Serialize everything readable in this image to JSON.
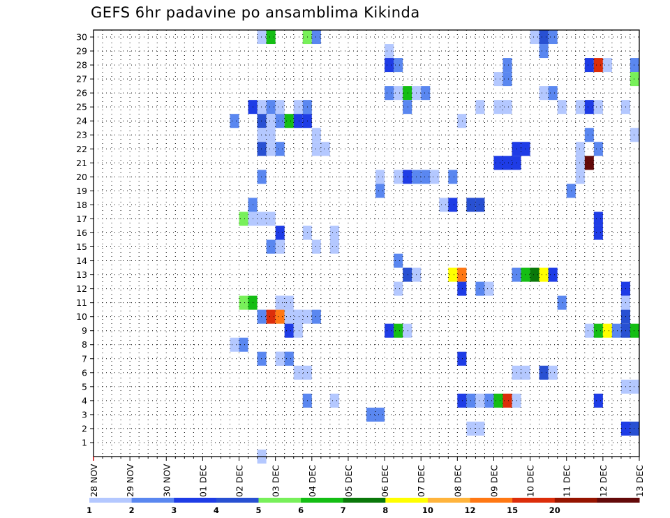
{
  "chart_data": {
    "type": "heatmap",
    "title": "GEFS 6hr padavine po ansamblima Kikinda",
    "x_ticks": [
      "28 NOV",
      "29 NOV",
      "30 NOV",
      "01 DEC",
      "02 DEC",
      "03 DEC",
      "04 DEC",
      "05 DEC",
      "06 DEC",
      "07 DEC",
      "08 DEC",
      "09 DEC",
      "10 DEC",
      "11 DEC",
      "12 DEC",
      "13 DEC"
    ],
    "y_ticks": [
      "1",
      "2",
      "3",
      "4",
      "5",
      "6",
      "7",
      "8",
      "9",
      "10",
      "11",
      "12",
      "13",
      "14",
      "15",
      "16",
      "17",
      "18",
      "19",
      "20",
      "21",
      "22",
      "23",
      "24",
      "25",
      "26",
      "27",
      "28",
      "29",
      "30"
    ],
    "xlim": [
      "28 NOV 00Z",
      "13 DEC 00Z"
    ],
    "ylim": [
      0,
      30
    ],
    "grid": true,
    "time_step_hours": 6,
    "legend": {
      "position": "bottom",
      "labels": [
        "1",
        "2",
        "3",
        "4",
        "5",
        "6",
        "7",
        "8",
        "10",
        "12",
        "15",
        "20"
      ],
      "colors": [
        "#b4c8ff",
        "#5a87f0",
        "#1e3ce6",
        "#2850d2",
        "#78f05a",
        "#14be14",
        "#0a780a",
        "#ffff00",
        "#ffb43c",
        "#ff7814",
        "#dc2d0a",
        "#961400",
        "#640a0a"
      ]
    },
    "cells": [
      {
        "member": 30,
        "ts": [
          [
            3,
            2,
            1
          ],
          [
            3,
            3,
            6
          ],
          [
            3,
            7,
            5
          ],
          [
            3,
            8,
            2
          ],
          [
            7,
            0,
            1
          ],
          [
            7,
            1,
            4
          ],
          [
            7,
            2,
            2
          ]
        ]
      },
      {
        "member": 29,
        "ts": [
          [
            3,
            16,
            1
          ],
          [
            7,
            1,
            2
          ]
        ]
      },
      {
        "member": 28,
        "ts": [
          [
            3,
            16,
            3
          ],
          [
            3,
            17,
            2
          ],
          [
            3,
            29,
            2
          ],
          [
            7,
            6,
            3
          ],
          [
            7,
            7,
            11
          ],
          [
            7,
            8,
            1
          ],
          [
            7,
            11,
            2
          ]
        ]
      },
      {
        "member": 27,
        "ts": [
          [
            3,
            28,
            1
          ],
          [
            3,
            29,
            2
          ],
          [
            7,
            11,
            5
          ]
        ]
      },
      {
        "member": 26,
        "ts": [
          [
            3,
            16,
            2
          ],
          [
            3,
            17,
            1
          ],
          [
            3,
            18,
            6
          ],
          [
            3,
            19,
            1
          ],
          [
            3,
            20,
            2
          ],
          [
            7,
            1,
            1
          ],
          [
            7,
            2,
            2
          ]
        ]
      },
      {
        "member": 25,
        "ts": [
          [
            2,
            18,
            1
          ],
          [
            2,
            19,
            2
          ],
          [
            2,
            20,
            1
          ],
          [
            3,
            1,
            3
          ],
          [
            3,
            6,
            1
          ],
          [
            3,
            7,
            2
          ],
          [
            3,
            18,
            2
          ],
          [
            3,
            26,
            1
          ],
          [
            3,
            28,
            1
          ],
          [
            3,
            29,
            1
          ],
          [
            7,
            3,
            1
          ],
          [
            7,
            5,
            1
          ],
          [
            7,
            6,
            3
          ],
          [
            7,
            7,
            1
          ],
          [
            7,
            10,
            1
          ],
          [
            7,
            12,
            1
          ]
        ]
      },
      {
        "member": 24,
        "ts": [
          [
            2,
            15,
            2
          ],
          [
            2,
            18,
            4
          ],
          [
            2,
            19,
            1
          ],
          [
            3,
            4,
            2
          ],
          [
            3,
            5,
            6
          ],
          [
            3,
            6,
            3
          ],
          [
            3,
            7,
            3
          ],
          [
            3,
            24,
            1
          ]
        ]
      },
      {
        "member": 23,
        "ts": [
          [
            3,
            2,
            1
          ],
          [
            3,
            3,
            1
          ],
          [
            3,
            8,
            1
          ],
          [
            7,
            6,
            2
          ],
          [
            7,
            11,
            1
          ]
        ]
      },
      {
        "member": 22,
        "ts": [
          [
            2,
            18,
            4
          ],
          [
            2,
            19,
            1
          ],
          [
            2,
            20,
            2
          ],
          [
            3,
            8,
            1
          ],
          [
            3,
            9,
            1
          ],
          [
            3,
            30,
            3
          ],
          [
            3,
            31,
            3
          ],
          [
            7,
            5,
            1
          ],
          [
            7,
            7,
            2
          ]
        ]
      },
      {
        "member": 21,
        "ts": [
          [
            3,
            28,
            3
          ],
          [
            3,
            29,
            3
          ],
          [
            3,
            30,
            3
          ],
          [
            7,
            5,
            1
          ],
          [
            7,
            6,
            15
          ]
        ]
      },
      {
        "member": 20,
        "ts": [
          [
            3,
            2,
            2
          ],
          [
            3,
            15,
            1
          ],
          [
            3,
            17,
            1
          ],
          [
            3,
            18,
            3
          ],
          [
            3,
            19,
            2
          ],
          [
            3,
            20,
            2
          ],
          [
            3,
            21,
            1
          ],
          [
            3,
            23,
            2
          ],
          [
            7,
            5,
            1
          ]
        ]
      },
      {
        "member": 19,
        "ts": [
          [
            3,
            15,
            2
          ],
          [
            7,
            4,
            2
          ]
        ]
      },
      {
        "member": 18,
        "ts": [
          [
            3,
            1,
            2
          ],
          [
            3,
            22,
            1
          ],
          [
            3,
            23,
            3
          ],
          [
            3,
            25,
            4
          ],
          [
            3,
            26,
            4
          ]
        ]
      },
      {
        "member": 17,
        "ts": [
          [
            3,
            0,
            5
          ],
          [
            3,
            1,
            1
          ],
          [
            3,
            2,
            1
          ],
          [
            3,
            3,
            1
          ],
          [
            7,
            7,
            3
          ]
        ]
      },
      {
        "member": 16,
        "ts": [
          [
            2,
            20,
            3
          ],
          [
            3,
            7,
            1
          ],
          [
            3,
            10,
            1
          ],
          [
            7,
            7,
            3
          ]
        ]
      },
      {
        "member": 15,
        "ts": [
          [
            2,
            20,
            3
          ],
          [
            3,
            3,
            2
          ],
          [
            3,
            4,
            1
          ],
          [
            3,
            8,
            1
          ],
          [
            3,
            10,
            1
          ]
        ]
      },
      {
        "member": 14,
        "ts": [
          [
            3,
            17,
            2
          ]
        ]
      },
      {
        "member": 13,
        "ts": [
          [
            3,
            18,
            4
          ],
          [
            3,
            19,
            1
          ],
          [
            3,
            23,
            8
          ],
          [
            3,
            24,
            10
          ],
          [
            3,
            30,
            2
          ],
          [
            3,
            31,
            6
          ],
          [
            7,
            0,
            7
          ],
          [
            7,
            1,
            8
          ],
          [
            7,
            2,
            3
          ]
        ]
      },
      {
        "member": 12,
        "ts": [
          [
            3,
            17,
            1
          ],
          [
            3,
            24,
            3
          ],
          [
            3,
            26,
            2
          ],
          [
            3,
            27,
            1
          ],
          [
            7,
            10,
            3
          ]
        ]
      },
      {
        "member": 11,
        "ts": [
          [
            2,
            20,
            1
          ],
          [
            3,
            0,
            5
          ],
          [
            3,
            1,
            6
          ],
          [
            3,
            4,
            1
          ],
          [
            3,
            5,
            1
          ],
          [
            7,
            3,
            2
          ],
          [
            7,
            10,
            1
          ]
        ]
      },
      {
        "member": 10,
        "ts": [
          [
            2,
            21,
            1
          ],
          [
            2,
            22,
            1
          ],
          [
            3,
            2,
            2
          ],
          [
            3,
            3,
            11
          ],
          [
            3,
            4,
            10
          ],
          [
            3,
            5,
            1
          ],
          [
            3,
            6,
            1
          ],
          [
            3,
            7,
            1
          ],
          [
            3,
            8,
            2
          ],
          [
            7,
            10,
            4
          ]
        ]
      },
      {
        "member": 9,
        "ts": [
          [
            3,
            5,
            3
          ],
          [
            3,
            6,
            1
          ],
          [
            3,
            16,
            3
          ],
          [
            3,
            17,
            6
          ],
          [
            3,
            18,
            1
          ],
          [
            7,
            6,
            1
          ],
          [
            7,
            7,
            6
          ],
          [
            7,
            8,
            8
          ],
          [
            7,
            9,
            2
          ],
          [
            7,
            10,
            4
          ],
          [
            7,
            11,
            6
          ],
          [
            7,
            12,
            3
          ]
        ]
      },
      {
        "member": 8,
        "ts": [
          [
            2,
            15,
            1
          ],
          [
            2,
            16,
            2
          ]
        ]
      },
      {
        "member": 7,
        "ts": [
          [
            2,
            20,
            1
          ],
          [
            2,
            21,
            1
          ],
          [
            3,
            2,
            2
          ],
          [
            3,
            4,
            1
          ],
          [
            3,
            5,
            2
          ],
          [
            3,
            24,
            3
          ]
        ]
      },
      {
        "member": 6,
        "ts": [
          [
            3,
            6,
            1
          ],
          [
            3,
            7,
            1
          ],
          [
            3,
            30,
            1
          ],
          [
            3,
            31,
            1
          ],
          [
            7,
            1,
            4
          ],
          [
            7,
            2,
            1
          ]
        ]
      },
      {
        "member": 5,
        "ts": [
          [
            7,
            10,
            1
          ],
          [
            7,
            11,
            1
          ],
          [
            7,
            12,
            1
          ]
        ]
      },
      {
        "member": 4,
        "ts": [
          [
            3,
            7,
            2
          ],
          [
            3,
            10,
            1
          ],
          [
            3,
            24,
            3
          ],
          [
            3,
            25,
            2
          ],
          [
            3,
            26,
            1
          ],
          [
            3,
            27,
            2
          ],
          [
            3,
            28,
            6
          ],
          [
            3,
            29,
            11
          ],
          [
            3,
            30,
            1
          ],
          [
            7,
            7,
            3
          ]
        ]
      },
      {
        "member": 3,
        "ts": [
          [
            3,
            14,
            2
          ],
          [
            3,
            15,
            2
          ]
        ]
      },
      {
        "member": 2,
        "ts": [
          [
            3,
            25,
            1
          ],
          [
            3,
            26,
            1
          ],
          [
            7,
            10,
            3
          ],
          [
            7,
            11,
            4
          ],
          [
            7,
            12,
            11
          ],
          [
            7,
            13,
            2
          ]
        ]
      },
      {
        "member": 1,
        "ts": []
      },
      {
        "member": 0,
        "ts": [
          [
            2,
            18,
            1
          ]
        ]
      }
    ]
  }
}
